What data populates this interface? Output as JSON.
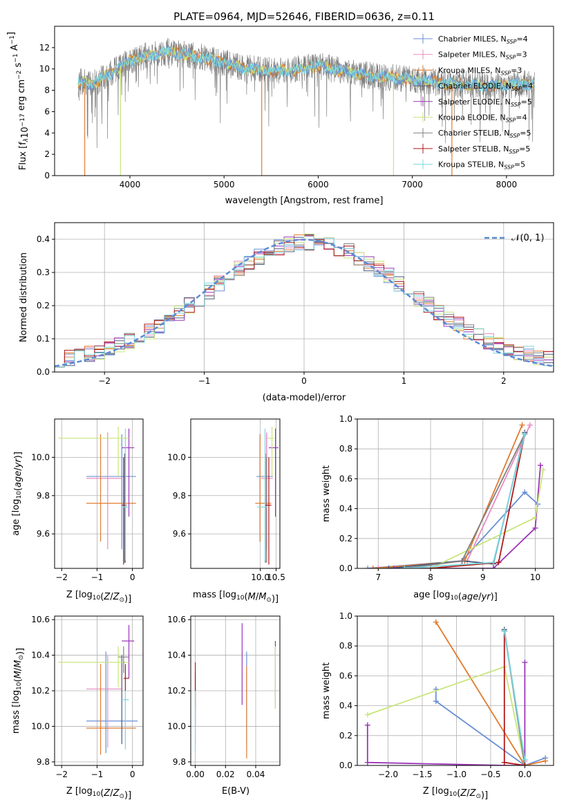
{
  "colors": [
    "#6a8fd6",
    "#e88bbf",
    "#e07a2d",
    "#4a5a7a",
    "#9b34b8",
    "#c8e67a",
    "#808080",
    "#b01818",
    "#7ad8e0"
  ],
  "chart_data": [
    {
      "type": "line",
      "title": "PLATE=0964, MJD=52646, FIBERID=0636, z=0.11",
      "xlabel": "wavelength [Angstrom, rest frame]",
      "ylabel": "Flux [f_λ 10^-17 erg cm^-2 s^-1 A^-1]",
      "ylabel_parts": {
        "a": "Flux [f",
        "b": "λ",
        "c": "10",
        "d": "−17",
        "e": " erg cm",
        "f": "−2",
        "g": " s",
        "h": "−1",
        "i": " A",
        "j": "−1",
        "k": "]"
      },
      "xlim": [
        3200,
        8500
      ],
      "ylim": [
        0,
        14
      ],
      "xticks": [
        4000,
        5000,
        6000,
        7000,
        8000
      ],
      "yticks": [
        0,
        2,
        4,
        6,
        8,
        10,
        12
      ],
      "grid": false,
      "legend_position": "top-right",
      "legend": [
        {
          "base": "Chabrier MILES, N",
          "sub": "SSP",
          "tail": "=4"
        },
        {
          "base": "Salpeter MILES, N",
          "sub": "SSP",
          "tail": "=3"
        },
        {
          "base": "Kroupa MILES, N",
          "sub": "SSP",
          "tail": "=3"
        },
        {
          "base": "Chabrier ELODIE, N",
          "sub": "SSP",
          "tail": "=4"
        },
        {
          "base": "Salpeter ELODIE, N",
          "sub": "SSP",
          "tail": "=5"
        },
        {
          "base": "Kroupa ELODIE, N",
          "sub": "SSP",
          "tail": "=4"
        },
        {
          "base": "Chabrier STELIB, N",
          "sub": "SSP",
          "tail": "=5"
        },
        {
          "base": "Salpeter STELIB, N",
          "sub": "SSP",
          "tail": "=5"
        },
        {
          "base": "Kroupa STELIB, N",
          "sub": "SSP",
          "tail": "=5"
        }
      ],
      "model_continuum": {
        "x": [
          3450,
          3600,
          3800,
          4000,
          4200,
          4400,
          4600,
          4800,
          5000,
          5200,
          5400,
          5600,
          5800,
          6000,
          6200,
          6400,
          6600,
          6800,
          7000,
          7200,
          7400,
          7600,
          7800,
          8000,
          8200,
          8300
        ],
        "y": [
          8.8,
          8.6,
          9.6,
          10.8,
          11.3,
          11.6,
          11.3,
          11.0,
          10.6,
          10.1,
          9.9,
          9.8,
          10.0,
          10.3,
          9.9,
          9.6,
          9.3,
          9.2,
          9.0,
          8.8,
          8.6,
          8.5,
          8.4,
          8.5,
          8.6,
          8.6
        ]
      },
      "data_range": [
        3450,
        8300
      ],
      "dropouts": [
        {
          "x": 3520,
          "series": 2
        },
        {
          "x": 3900,
          "series": 5
        },
        {
          "x": 5400,
          "series": 2
        },
        {
          "x": 6800,
          "series": 5
        },
        {
          "x": 7420,
          "series": 2
        }
      ]
    },
    {
      "type": "line",
      "xlabel": "(data-model)/error",
      "ylabel": "Normed distribution",
      "xlim": [
        -2.5,
        2.5
      ],
      "ylim": [
        0,
        0.45
      ],
      "xticks": [
        -2,
        -1,
        0,
        1,
        2
      ],
      "yticks": [
        0.0,
        0.1,
        0.2,
        0.3,
        0.4
      ],
      "grid": true,
      "legend_position": "top-right",
      "legend_label": "𝒩(0, 1)",
      "bin_width": 0.1,
      "bin_start": -2.5,
      "gaussian": {
        "mean": 0,
        "sigma": 1
      }
    },
    {
      "type": "scatter",
      "xlabel": "Z [log10(Z/Z⊙)]",
      "ylabel": "age  [log10(age/yr)]",
      "xlim": [
        -2.2,
        0.3
      ],
      "ylim": [
        9.42,
        10.2
      ],
      "xticks": [
        -2,
        -1,
        0
      ],
      "yticks": [
        9.6,
        9.8,
        10.0
      ],
      "grid": true,
      "points": [
        {
          "s": 0,
          "x": -0.3,
          "x0": -1.3,
          "x1": 0.1,
          "y": 9.9,
          "y0": 9.52,
          "y1": 10.12
        },
        {
          "s": 1,
          "x": -0.7,
          "x0": -1.3,
          "x1": -0.3,
          "y": 9.89,
          "y0": 9.52,
          "y1": 10.13
        },
        {
          "s": 2,
          "x": -0.9,
          "x0": -1.3,
          "x1": 0.1,
          "y": 9.76,
          "y0": 9.56,
          "y1": 10.12
        },
        {
          "s": 3,
          "x": -0.22,
          "x0": -0.22,
          "x1": -0.22,
          "y": 9.75,
          "y0": 9.45,
          "y1": 10.02
        },
        {
          "s": 4,
          "x": -0.1,
          "x0": -0.3,
          "x1": 0.05,
          "y": 10.05,
          "y0": 9.69,
          "y1": 10.15
        },
        {
          "s": 5,
          "x": -0.4,
          "x0": -2.1,
          "x1": -0.1,
          "y": 10.1,
          "y0": 9.9,
          "y1": 10.16
        },
        {
          "s": 6,
          "x": -0.2,
          "x0": -0.25,
          "x1": -0.15,
          "y": 9.75,
          "y0": 9.45,
          "y1": 10.0
        },
        {
          "s": 7,
          "x": -0.25,
          "x0": -0.3,
          "x1": -0.2,
          "y": 9.75,
          "y0": 9.44,
          "y1": 10.0
        },
        {
          "s": 8,
          "x": -0.2,
          "x0": -0.3,
          "x1": -0.1,
          "y": 9.74,
          "y0": 9.46,
          "y1": 10.15
        }
      ]
    },
    {
      "type": "scatter",
      "xlabel": "mass [log10(M/M⊙)]",
      "ylabel": "",
      "xlim": [
        7.8,
        10.62
      ],
      "ylim": [
        9.42,
        10.2
      ],
      "xticks": [
        10.0,
        10.5
      ],
      "yticks": [
        9.6,
        9.8,
        10.0
      ],
      "grid": true,
      "points": [
        {
          "s": 0,
          "x": 10.2,
          "x0": 9.88,
          "x1": 10.4,
          "y": 9.9,
          "y0": 9.52,
          "y1": 10.12
        },
        {
          "s": 1,
          "x": 10.2,
          "x0": 10.03,
          "x1": 10.4,
          "y": 9.89,
          "y0": 9.52,
          "y1": 10.13
        },
        {
          "s": 2,
          "x": 9.99,
          "x0": 9.84,
          "x1": 10.35,
          "y": 9.76,
          "y0": 9.56,
          "y1": 10.12
        },
        {
          "s": 3,
          "x": 10.16,
          "x0": 10.16,
          "x1": 10.16,
          "y": 9.75,
          "y0": 9.45,
          "y1": 10.02
        },
        {
          "s": 4,
          "x": 10.48,
          "x0": 10.27,
          "x1": 10.57,
          "y": 10.05,
          "y0": 9.69,
          "y1": 10.15
        },
        {
          "s": 5,
          "x": 10.37,
          "x0": 10.22,
          "x1": 10.43,
          "y": 10.1,
          "y0": 9.9,
          "y1": 10.16
        },
        {
          "s": 6,
          "x": 10.2,
          "x0": 10.2,
          "x1": 10.3,
          "y": 9.75,
          "y0": 9.45,
          "y1": 10.0
        },
        {
          "s": 7,
          "x": 10.27,
          "x0": 10.16,
          "x1": 10.35,
          "y": 9.75,
          "y0": 9.44,
          "y1": 10.0
        },
        {
          "s": 8,
          "x": 10.15,
          "x0": 9.9,
          "x1": 10.2,
          "y": 9.74,
          "y0": 9.46,
          "y1": 10.15
        }
      ]
    },
    {
      "type": "line",
      "xlabel": "age  [log10(age/yr)]",
      "ylabel": "mass weight",
      "xlim": [
        6.6,
        10.35
      ],
      "ylim": [
        0,
        1.0
      ],
      "xticks": [
        7,
        8,
        9,
        10
      ],
      "yticks": [
        0.0,
        0.2,
        0.4,
        0.6,
        0.8,
        1.0
      ],
      "grid": true,
      "series": [
        {
          "s": 0,
          "x": [
            6.8,
            8.6,
            9.8,
            10.05
          ],
          "y": [
            0.0,
            0.05,
            0.51,
            0.43
          ]
        },
        {
          "s": 1,
          "x": [
            7.0,
            8.7,
            9.9
          ],
          "y": [
            0.0,
            0.05,
            0.96
          ]
        },
        {
          "s": 2,
          "x": [
            6.9,
            8.65,
            9.75
          ],
          "y": [
            0.0,
            0.05,
            0.96
          ]
        },
        {
          "s": 3,
          "x": [
            7.2,
            8.6,
            9.2,
            9.8
          ],
          "y": [
            0.0,
            0.05,
            0.03,
            0.91
          ]
        },
        {
          "s": 4,
          "x": [
            7.3,
            9.2,
            10.0,
            10.1
          ],
          "y": [
            0.0,
            0.0,
            0.27,
            0.69
          ]
        },
        {
          "s": 5,
          "x": [
            8.0,
            10.0,
            10.15
          ],
          "y": [
            0.0,
            0.34,
            0.66
          ]
        },
        {
          "s": 6,
          "x": [
            7.5,
            8.6,
            9.8
          ],
          "y": [
            0.0,
            0.05,
            0.9
          ]
        },
        {
          "s": 7,
          "x": [
            8.0,
            9.3,
            9.8
          ],
          "y": [
            0.0,
            0.04,
            0.9
          ]
        },
        {
          "s": 8,
          "x": [
            7.5,
            9.2,
            9.8
          ],
          "y": [
            0.0,
            0.04,
            0.9
          ]
        }
      ]
    },
    {
      "type": "scatter",
      "xlabel": "Z [log10(Z/Z⊙)]",
      "ylabel": "mass [log10(M/M⊙)]",
      "xlim": [
        -2.2,
        0.3
      ],
      "ylim": [
        9.78,
        10.62
      ],
      "xticks": [
        -2,
        -1,
        0
      ],
      "yticks": [
        9.8,
        10.0,
        10.2,
        10.4,
        10.6
      ],
      "grid": true,
      "points": [
        {
          "s": 0,
          "x": -0.75,
          "x0": -1.3,
          "x1": 0.15,
          "y": 10.03,
          "y0": 9.85,
          "y1": 10.42
        },
        {
          "s": 1,
          "x": -0.7,
          "x0": -1.3,
          "x1": -0.3,
          "y": 10.21,
          "y0": 9.88,
          "y1": 10.4
        },
        {
          "s": 2,
          "x": -0.9,
          "x0": -1.3,
          "x1": 0.1,
          "y": 9.99,
          "y0": 9.84,
          "y1": 10.35
        },
        {
          "s": 3,
          "x": -0.3,
          "x0": -0.3,
          "x1": -0.3,
          "y": 10.16,
          "y0": 9.9,
          "y1": 10.4
        },
        {
          "s": 4,
          "x": -0.1,
          "x0": -0.3,
          "x1": 0.05,
          "y": 10.48,
          "y0": 10.27,
          "y1": 10.57
        },
        {
          "s": 5,
          "x": -0.4,
          "x0": -2.1,
          "x1": -0.1,
          "y": 10.36,
          "y0": 10.22,
          "y1": 10.45
        },
        {
          "s": 6,
          "x": -0.25,
          "x0": -0.4,
          "x1": -0.1,
          "y": 10.39,
          "y0": 10.3,
          "y1": 10.45
        },
        {
          "s": 7,
          "x": -0.2,
          "x0": -0.25,
          "x1": -0.1,
          "y": 10.27,
          "y0": 10.2,
          "y1": 10.35
        },
        {
          "s": 8,
          "x": -0.2,
          "x0": -0.3,
          "x1": -0.1,
          "y": 10.15,
          "y0": 9.87,
          "y1": 10.2
        }
      ]
    },
    {
      "type": "scatter",
      "xlabel": "E(B-V)",
      "ylabel": "",
      "xlim": [
        -0.003,
        0.056
      ],
      "ylim": [
        9.78,
        10.62
      ],
      "xticks": [
        0.0,
        0.02,
        0.04
      ],
      "yticks": [
        9.8,
        10.0,
        10.2,
        10.4,
        10.6
      ],
      "grid": true,
      "points": [
        {
          "s": 0,
          "x": 0.034,
          "y0": 9.9,
          "y1": 10.42
        },
        {
          "s": 1,
          "x": 0.0,
          "y0": 9.9,
          "y1": 10.3
        },
        {
          "s": 2,
          "x": 0.034,
          "y0": 9.82,
          "y1": 10.34
        },
        {
          "s": 3,
          "x": 0.053,
          "y0": 10.1,
          "y1": 10.48
        },
        {
          "s": 4,
          "x": 0.031,
          "y0": 10.12,
          "y1": 10.58
        },
        {
          "s": 5,
          "x": 0.053,
          "y0": 10.1,
          "y1": 10.45
        },
        {
          "s": 6,
          "x": 0.0,
          "y0": 10.0,
          "y1": 10.3
        },
        {
          "s": 7,
          "x": 0.0,
          "y0": 10.1,
          "y1": 10.36
        },
        {
          "s": 8,
          "x": 0.0,
          "y0": 9.86,
          "y1": 10.2
        }
      ]
    },
    {
      "type": "line",
      "xlabel": "Z [log10(Z/Z⊙)]",
      "ylabel": "mass weight",
      "xlim": [
        -2.45,
        0.42
      ],
      "ylim": [
        0,
        1.0
      ],
      "xticks": [
        -2.0,
        -1.5,
        -1.0,
        -0.5,
        0.0
      ],
      "yticks": [
        0.0,
        0.2,
        0.4,
        0.6,
        0.8,
        1.0
      ],
      "grid": true,
      "series": [
        {
          "s": 0,
          "x": [
            -1.3,
            -1.3,
            0.0,
            0.3
          ],
          "y": [
            0.51,
            0.43,
            0.0,
            0.05
          ]
        },
        {
          "s": 1,
          "x": [
            -0.3,
            0.0
          ],
          "y": [
            0.9,
            0.03
          ]
        },
        {
          "s": 2,
          "x": [
            -1.3,
            0.0,
            0.3
          ],
          "y": [
            0.96,
            0.0,
            0.03
          ]
        },
        {
          "s": 3,
          "x": [
            -0.3,
            0.0
          ],
          "y": [
            0.91,
            0.0
          ]
        },
        {
          "s": 4,
          "x": [
            -2.3,
            -2.3,
            -0.3,
            0.0,
            0.0
          ],
          "y": [
            0.27,
            0.02,
            0.0,
            0.0,
            0.69
          ]
        },
        {
          "s": 5,
          "x": [
            -2.3,
            -0.3,
            0.0
          ],
          "y": [
            0.34,
            0.66,
            0.0
          ]
        },
        {
          "s": 6,
          "x": [
            -0.3,
            0.0
          ],
          "y": [
            0.9,
            0.0
          ]
        },
        {
          "s": 7,
          "x": [
            -0.3,
            -0.3,
            0.0
          ],
          "y": [
            0.9,
            0.02,
            0.0
          ]
        },
        {
          "s": 8,
          "x": [
            -0.3,
            0.0
          ],
          "y": [
            0.9,
            0.04
          ]
        }
      ]
    }
  ]
}
